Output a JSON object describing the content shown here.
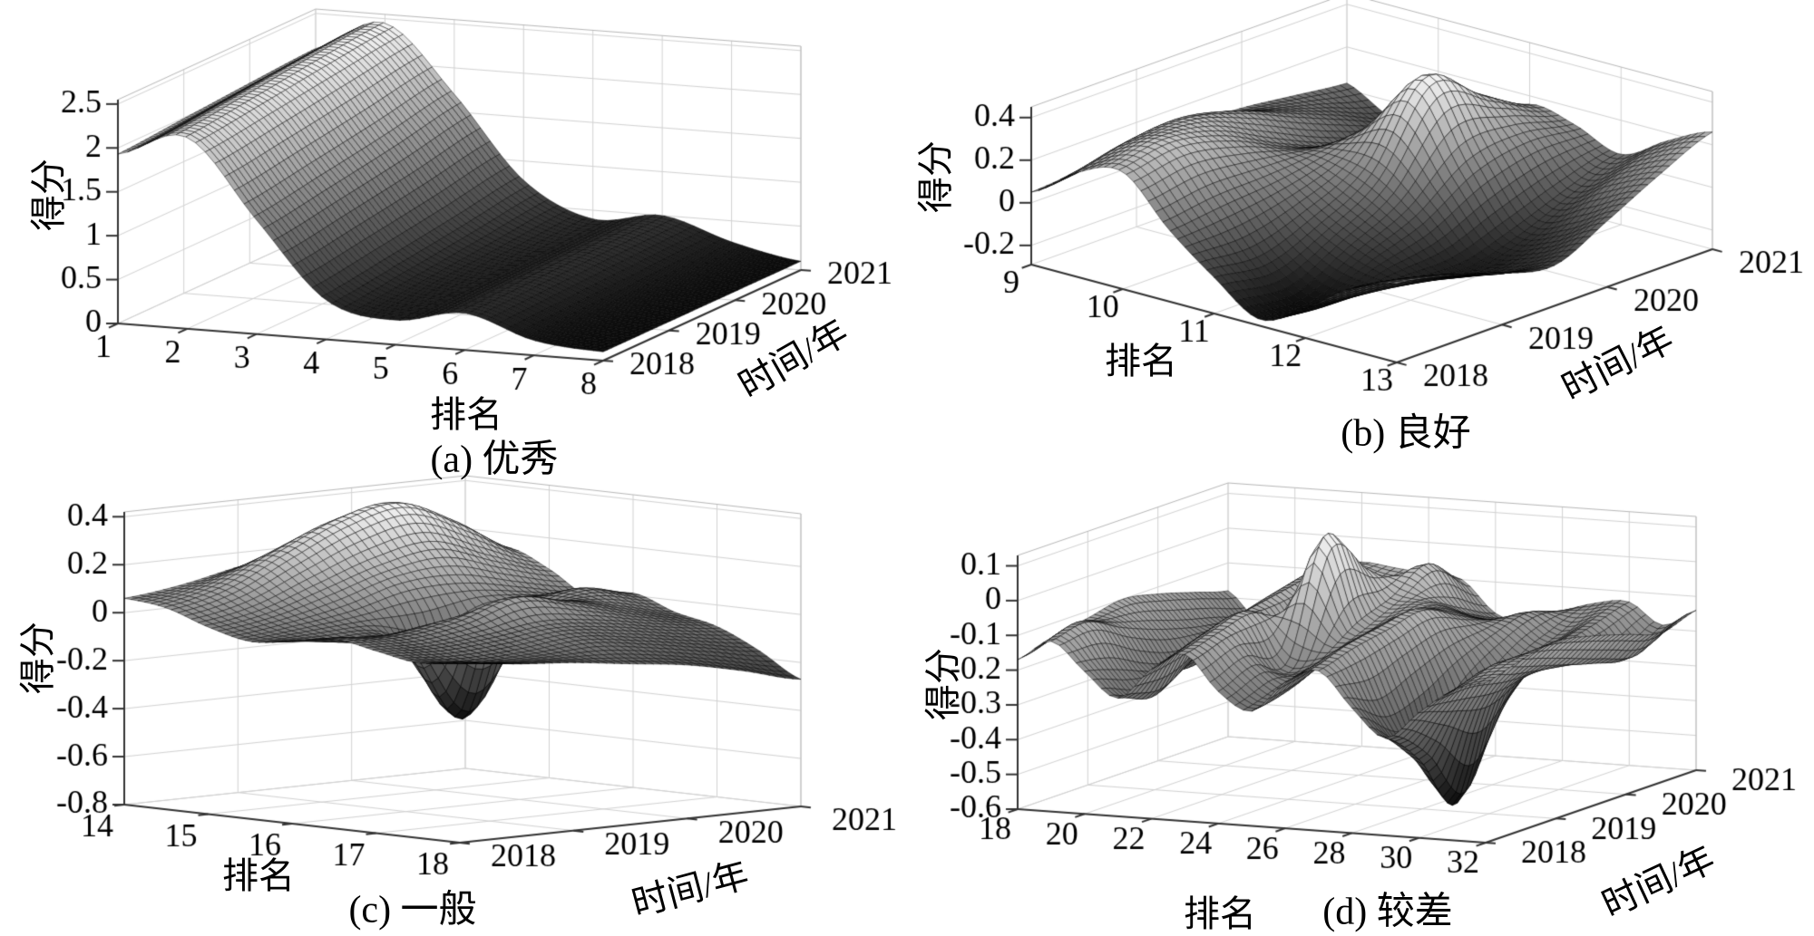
{
  "figure": {
    "background": "#ffffff",
    "text_color": "#000000",
    "grid_color": "#d2d2d2",
    "axis_color": "#333333"
  },
  "chart_data": [
    {
      "type": "surface",
      "id": "a",
      "caption": "(a) 优秀",
      "xlabel": "排名",
      "ylabel": "时间/年",
      "zlabel": "得分",
      "xlim": [
        1,
        8
      ],
      "ylim": [
        2018,
        2021
      ],
      "zlim": [
        0,
        2.55
      ],
      "xticks": [
        1,
        2,
        3,
        4,
        5,
        6,
        7,
        8
      ],
      "xtick_labels": [
        "1",
        "2",
        "3",
        "4",
        "5",
        "6",
        "7",
        "8"
      ],
      "yticks": [
        2018,
        2019,
        2020,
        2021
      ],
      "ytick_labels": [
        "2018",
        "2019",
        "2020",
        "2021"
      ],
      "zticks": [
        0,
        0.5,
        1,
        1.5,
        2,
        2.5
      ],
      "ztick_labels": [
        "0",
        "0.5",
        "1",
        "1.5",
        "2",
        "2.5"
      ],
      "grid_x": [
        1,
        2,
        3,
        4,
        5,
        6,
        7,
        8
      ],
      "grid_y": [
        2018,
        2019,
        2020,
        2021
      ],
      "z_grid": [
        [
          1.93,
          2.18,
          1.3,
          0.45,
          0.28,
          0.42,
          0.17,
          0.1
        ],
        [
          1.99,
          2.27,
          1.42,
          0.55,
          0.32,
          0.45,
          0.2,
          0.1
        ],
        [
          2.05,
          2.37,
          1.55,
          0.66,
          0.36,
          0.48,
          0.23,
          0.1
        ],
        [
          2.1,
          2.45,
          1.7,
          0.78,
          0.4,
          0.5,
          0.26,
          0.1
        ]
      ]
    },
    {
      "type": "surface",
      "id": "b",
      "caption": "(b) 良好",
      "xlabel": "排名",
      "ylabel": "时间/年",
      "zlabel": "得分",
      "xlim": [
        9,
        13
      ],
      "ylim": [
        2018,
        2021
      ],
      "zlim": [
        -0.29,
        0.45
      ],
      "xticks": [
        9,
        10,
        11,
        12,
        13
      ],
      "xtick_labels": [
        "9",
        "10",
        "11",
        "12",
        "13"
      ],
      "yticks": [
        2018,
        2019,
        2020,
        2021
      ],
      "ytick_labels": [
        "2018",
        "2019",
        "2020",
        "2021"
      ],
      "zticks": [
        -0.2,
        0,
        0.2,
        0.4
      ],
      "ztick_labels": [
        "-0.2",
        "0",
        "0.2",
        "0.4"
      ],
      "grid_x": [
        9,
        9.5,
        10,
        10.5,
        11,
        11.5,
        12,
        12.5,
        13
      ],
      "grid_y": [
        2018,
        2018.5,
        2019,
        2019.5,
        2020,
        2020.5,
        2021
      ],
      "z_grid": [
        [
          0.05,
          0.2,
          0.26,
          0.05,
          -0.12,
          -0.26,
          -0.15,
          0.0,
          0.08
        ],
        [
          0.07,
          0.26,
          0.3,
          0.08,
          -0.15,
          -0.27,
          -0.18,
          -0.05,
          0.03
        ],
        [
          0.09,
          0.28,
          0.24,
          0.1,
          -0.05,
          -0.15,
          -0.2,
          -0.12,
          -0.05
        ],
        [
          0.1,
          0.22,
          0.12,
          0.14,
          0.1,
          -0.05,
          -0.22,
          -0.18,
          -0.1
        ],
        [
          0.09,
          0.12,
          0.02,
          0.2,
          0.46,
          0.12,
          -0.15,
          -0.1,
          0.02
        ],
        [
          0.06,
          0.02,
          -0.06,
          0.12,
          0.3,
          0.16,
          -0.05,
          0.06,
          0.15
        ],
        [
          0.03,
          -0.08,
          -0.1,
          0.0,
          0.16,
          0.12,
          0.04,
          0.16,
          0.26
        ]
      ]
    },
    {
      "type": "surface",
      "id": "c",
      "caption": "(c) 一般",
      "xlabel": "排名",
      "ylabel": "时间/年",
      "zlabel": "得分",
      "xlim": [
        14,
        18
      ],
      "ylim": [
        2018,
        2021
      ],
      "zlim": [
        -0.8,
        0.42
      ],
      "xticks": [
        14,
        15,
        16,
        17,
        18
      ],
      "xtick_labels": [
        "14",
        "15",
        "16",
        "17",
        "18"
      ],
      "yticks": [
        2018,
        2019,
        2020,
        2021
      ],
      "ytick_labels": [
        "2018",
        "2019",
        "2020",
        "2021"
      ],
      "zticks": [
        -0.8,
        -0.6,
        -0.4,
        -0.2,
        0,
        0.2,
        0.4
      ],
      "ztick_labels": [
        "-0.8",
        "-0.6",
        "-0.4",
        "-0.2",
        "0",
        "0.2",
        "0.4"
      ],
      "grid_x": [
        14,
        14.5,
        15,
        15.5,
        16,
        16.5,
        17,
        17.5,
        18
      ],
      "grid_y": [
        2018,
        2018.5,
        2019,
        2019.5,
        2020,
        2020.5,
        2021
      ],
      "z_grid": [
        [
          0.06,
          0.04,
          -0.02,
          -0.06,
          -0.04,
          -0.01,
          -0.04,
          -0.07,
          -0.05
        ],
        [
          0.09,
          0.1,
          0.02,
          -0.04,
          -0.07,
          -0.02,
          -0.05,
          -0.09,
          -0.08
        ],
        [
          0.14,
          0.22,
          0.1,
          -0.02,
          -0.1,
          0.02,
          -0.03,
          -0.08,
          -0.1
        ],
        [
          0.18,
          0.33,
          0.18,
          0.0,
          -0.44,
          0.07,
          0.0,
          -0.06,
          -0.13
        ],
        [
          0.16,
          0.38,
          0.22,
          0.03,
          -0.06,
          0.05,
          -0.02,
          -0.09,
          -0.16
        ],
        [
          0.11,
          0.28,
          0.14,
          0.01,
          0.05,
          0.0,
          -0.06,
          -0.13,
          -0.21
        ],
        [
          0.07,
          0.14,
          0.07,
          -0.03,
          0.01,
          -0.05,
          -0.09,
          -0.17,
          -0.27
        ]
      ]
    },
    {
      "type": "surface",
      "id": "d",
      "caption": "(d) 较差",
      "xlabel": "排名",
      "ylabel": "时间/年",
      "zlabel": "得分",
      "xlim": [
        18,
        32
      ],
      "ylim": [
        2018,
        2021
      ],
      "zlim": [
        -0.6,
        0.13
      ],
      "xticks": [
        18,
        20,
        22,
        24,
        26,
        28,
        30,
        32
      ],
      "xtick_labels": [
        "18",
        "20",
        "22",
        "24",
        "26",
        "28",
        "30",
        "32"
      ],
      "yticks": [
        2018,
        2019,
        2020,
        2021
      ],
      "ytick_labels": [
        "2018",
        "2019",
        "2020",
        "2021"
      ],
      "zticks": [
        -0.6,
        -0.5,
        -0.4,
        -0.3,
        -0.2,
        -0.1,
        0,
        0.1
      ],
      "ztick_labels": [
        "-0.6",
        "-0.5",
        "-0.4",
        "-0.3",
        "-0.2",
        "-0.1",
        "0",
        "0.1"
      ],
      "grid_x": [
        18,
        19,
        20,
        21,
        22,
        23,
        24,
        25,
        26,
        27,
        28,
        29,
        30,
        31,
        32
      ],
      "grid_y": [
        2018,
        2018.5,
        2019,
        2019.5,
        2020,
        2020.5,
        2021
      ],
      "z_grid": [
        [
          -0.17,
          -0.11,
          -0.19,
          -0.26,
          -0.17,
          -0.12,
          -0.22,
          -0.27,
          -0.18,
          -0.14,
          -0.24,
          -0.32,
          -0.24,
          -0.17,
          -0.14
        ],
        [
          -0.14,
          -0.09,
          -0.22,
          -0.29,
          -0.14,
          -0.09,
          -0.18,
          -0.24,
          -0.16,
          -0.11,
          -0.3,
          -0.42,
          -0.27,
          -0.14,
          -0.11
        ],
        [
          -0.12,
          -0.14,
          -0.26,
          -0.23,
          -0.11,
          -0.07,
          -0.2,
          -0.19,
          -0.13,
          -0.09,
          -0.27,
          -0.58,
          -0.29,
          -0.17,
          -0.09
        ],
        [
          -0.1,
          -0.18,
          -0.28,
          -0.18,
          -0.09,
          -0.14,
          0.12,
          -0.12,
          -0.11,
          -0.07,
          -0.21,
          -0.36,
          -0.24,
          -0.2,
          -0.11
        ],
        [
          -0.12,
          -0.21,
          -0.24,
          -0.14,
          -0.07,
          -0.16,
          0.0,
          -0.08,
          -0.09,
          -0.12,
          -0.17,
          -0.24,
          -0.19,
          -0.23,
          -0.14
        ],
        [
          -0.15,
          -0.23,
          -0.19,
          -0.11,
          -0.05,
          -0.12,
          -0.1,
          -0.02,
          -0.14,
          -0.17,
          -0.14,
          -0.19,
          -0.16,
          -0.25,
          -0.17
        ],
        [
          -0.18,
          -0.26,
          -0.16,
          -0.09,
          -0.07,
          -0.08,
          -0.09,
          -0.1,
          -0.19,
          -0.21,
          -0.17,
          -0.14,
          -0.13,
          -0.19,
          -0.14
        ]
      ]
    }
  ]
}
